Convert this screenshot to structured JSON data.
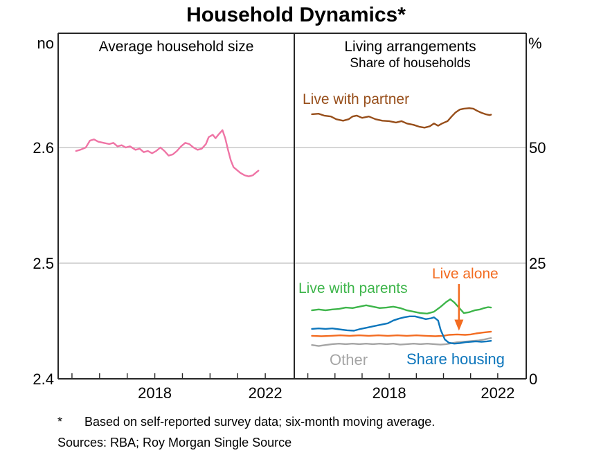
{
  "title": "Household Dynamics*",
  "panels": {
    "left": {
      "title": "Average household size",
      "unit": "no"
    },
    "right": {
      "title": "Living arrangements",
      "subtitle": "Share of households",
      "unit": "%"
    }
  },
  "footnote": {
    "marker": "*",
    "text": "Based on self-reported survey data; six-month moving average."
  },
  "sources": "Sources: RBA; Roy Morgan Single Source",
  "colors": {
    "pink": "#ef74a5",
    "brown": "#974e1a",
    "green": "#3db54a",
    "blue": "#0d76bc",
    "orange": "#f36c21",
    "gray": "#a5a5a5",
    "grid": "#bdbdbd",
    "axis": "#262626"
  },
  "chart_data": [
    {
      "type": "line",
      "panel": "left",
      "title": "Average household size",
      "ylabel_unit": "no",
      "ylim": [
        2.4,
        2.6988
      ],
      "yticks": [
        {
          "v": 2.6,
          "label": "2.6"
        },
        {
          "v": 2.5,
          "label": "2.5"
        },
        {
          "v": 2.4,
          "label": "2.4"
        }
      ],
      "axis_side": "left",
      "xlim": [
        2014.5,
        2023.05
      ],
      "xticks_labeled": [
        2018,
        2022
      ],
      "grid": "horizontal",
      "series": [
        {
          "name": "Average household size",
          "color_key": "pink",
          "points": [
            [
              2015.15,
              2.597
            ],
            [
              2015.3,
              2.598
            ],
            [
              2015.5,
              2.6
            ],
            [
              2015.65,
              2.606
            ],
            [
              2015.8,
              2.607
            ],
            [
              2015.95,
              2.605
            ],
            [
              2016.15,
              2.604
            ],
            [
              2016.35,
              2.603
            ],
            [
              2016.5,
              2.604
            ],
            [
              2016.65,
              2.601
            ],
            [
              2016.8,
              2.602
            ],
            [
              2016.95,
              2.6
            ],
            [
              2017.1,
              2.601
            ],
            [
              2017.3,
              2.598
            ],
            [
              2017.45,
              2.599
            ],
            [
              2017.6,
              2.596
            ],
            [
              2017.75,
              2.597
            ],
            [
              2017.9,
              2.595
            ],
            [
              2018.05,
              2.597
            ],
            [
              2018.2,
              2.6
            ],
            [
              2018.35,
              2.597
            ],
            [
              2018.5,
              2.593
            ],
            [
              2018.65,
              2.594
            ],
            [
              2018.8,
              2.597
            ],
            [
              2018.95,
              2.601
            ],
            [
              2019.1,
              2.604
            ],
            [
              2019.25,
              2.603
            ],
            [
              2019.4,
              2.6
            ],
            [
              2019.55,
              2.598
            ],
            [
              2019.7,
              2.599
            ],
            [
              2019.85,
              2.603
            ],
            [
              2019.95,
              2.609
            ],
            [
              2020.1,
              2.611
            ],
            [
              2020.2,
              2.608
            ],
            [
              2020.3,
              2.611
            ],
            [
              2020.45,
              2.615
            ],
            [
              2020.55,
              2.608
            ],
            [
              2020.65,
              2.598
            ],
            [
              2020.75,
              2.589
            ],
            [
              2020.85,
              2.583
            ],
            [
              2020.95,
              2.581
            ],
            [
              2021.1,
              2.578
            ],
            [
              2021.25,
              2.576
            ],
            [
              2021.4,
              2.575
            ],
            [
              2021.55,
              2.576
            ],
            [
              2021.65,
              2.578
            ],
            [
              2021.75,
              2.58
            ]
          ]
        }
      ]
    },
    {
      "type": "line",
      "panel": "right",
      "title": "Living arrangements",
      "subtitle": "Share of households",
      "ylabel_unit": "%",
      "ylim": [
        0,
        74.7
      ],
      "yticks": [
        {
          "v": 50,
          "label": "50"
        },
        {
          "v": 25,
          "label": "25"
        },
        {
          "v": 0,
          "label": "0"
        }
      ],
      "axis_side": "right",
      "xlim": [
        2014.5,
        2023.05
      ],
      "xticks_labeled": [
        2018,
        2022
      ],
      "grid": "horizontal",
      "draw_order": [
        4,
        2,
        3,
        1,
        0
      ],
      "arrow": {
        "x_year": 2020.57,
        "y_from": 20.5,
        "y_to": 10.4,
        "color_key": "orange"
      },
      "series": [
        {
          "name": "Live with partner",
          "color_key": "brown",
          "points": [
            [
              2015.15,
              57.2
            ],
            [
              2015.4,
              57.3
            ],
            [
              2015.6,
              56.9
            ],
            [
              2015.85,
              56.7
            ],
            [
              2016.05,
              56.1
            ],
            [
              2016.3,
              55.8
            ],
            [
              2016.5,
              56.1
            ],
            [
              2016.65,
              56.7
            ],
            [
              2016.8,
              56.9
            ],
            [
              2017.0,
              56.4
            ],
            [
              2017.25,
              56.7
            ],
            [
              2017.5,
              56.1
            ],
            [
              2017.75,
              55.8
            ],
            [
              2018.0,
              55.7
            ],
            [
              2018.25,
              55.4
            ],
            [
              2018.45,
              55.7
            ],
            [
              2018.65,
              55.2
            ],
            [
              2018.9,
              54.9
            ],
            [
              2019.1,
              54.5
            ],
            [
              2019.3,
              54.3
            ],
            [
              2019.5,
              54.6
            ],
            [
              2019.65,
              55.2
            ],
            [
              2019.8,
              54.7
            ],
            [
              2019.95,
              55.2
            ],
            [
              2020.15,
              55.7
            ],
            [
              2020.3,
              56.7
            ],
            [
              2020.45,
              57.6
            ],
            [
              2020.6,
              58.2
            ],
            [
              2020.75,
              58.4
            ],
            [
              2020.95,
              58.5
            ],
            [
              2021.1,
              58.4
            ],
            [
              2021.25,
              57.9
            ],
            [
              2021.4,
              57.5
            ],
            [
              2021.55,
              57.2
            ],
            [
              2021.7,
              57.0
            ],
            [
              2021.75,
              57.1
            ]
          ]
        },
        {
          "name": "Live with parents",
          "color_key": "green",
          "points": [
            [
              2015.15,
              14.8
            ],
            [
              2015.4,
              15.0
            ],
            [
              2015.65,
              14.8
            ],
            [
              2015.9,
              15.0
            ],
            [
              2016.15,
              15.1
            ],
            [
              2016.4,
              15.4
            ],
            [
              2016.65,
              15.3
            ],
            [
              2016.9,
              15.6
            ],
            [
              2017.15,
              15.9
            ],
            [
              2017.4,
              15.6
            ],
            [
              2017.65,
              15.3
            ],
            [
              2017.9,
              15.4
            ],
            [
              2018.15,
              15.6
            ],
            [
              2018.4,
              15.3
            ],
            [
              2018.65,
              14.8
            ],
            [
              2018.9,
              14.5
            ],
            [
              2019.15,
              14.2
            ],
            [
              2019.4,
              14.1
            ],
            [
              2019.65,
              14.5
            ],
            [
              2019.9,
              15.6
            ],
            [
              2020.1,
              16.6
            ],
            [
              2020.25,
              17.2
            ],
            [
              2020.4,
              16.5
            ],
            [
              2020.6,
              15.2
            ],
            [
              2020.75,
              14.2
            ],
            [
              2020.95,
              14.4
            ],
            [
              2021.15,
              14.8
            ],
            [
              2021.35,
              15.0
            ],
            [
              2021.5,
              15.3
            ],
            [
              2021.65,
              15.5
            ],
            [
              2021.75,
              15.4
            ]
          ]
        },
        {
          "name": "Live alone",
          "color_key": "orange",
          "points": [
            [
              2015.15,
              9.3
            ],
            [
              2015.5,
              9.2
            ],
            [
              2015.85,
              9.3
            ],
            [
              2016.2,
              9.4
            ],
            [
              2016.55,
              9.3
            ],
            [
              2016.9,
              9.4
            ],
            [
              2017.25,
              9.3
            ],
            [
              2017.6,
              9.4
            ],
            [
              2017.95,
              9.3
            ],
            [
              2018.3,
              9.4
            ],
            [
              2018.65,
              9.3
            ],
            [
              2019.0,
              9.4
            ],
            [
              2019.35,
              9.3
            ],
            [
              2019.7,
              9.2
            ],
            [
              2020.0,
              9.3
            ],
            [
              2020.2,
              9.5
            ],
            [
              2020.5,
              9.6
            ],
            [
              2020.8,
              9.5
            ],
            [
              2021.0,
              9.6
            ],
            [
              2021.2,
              9.8
            ],
            [
              2021.45,
              10.0
            ],
            [
              2021.75,
              10.2
            ]
          ]
        },
        {
          "name": "Share housing",
          "color_key": "blue",
          "points": [
            [
              2015.15,
              10.8
            ],
            [
              2015.4,
              10.9
            ],
            [
              2015.65,
              10.8
            ],
            [
              2015.9,
              10.9
            ],
            [
              2016.15,
              10.7
            ],
            [
              2016.45,
              10.5
            ],
            [
              2016.7,
              10.4
            ],
            [
              2016.95,
              10.8
            ],
            [
              2017.2,
              11.1
            ],
            [
              2017.45,
              11.4
            ],
            [
              2017.7,
              11.7
            ],
            [
              2017.95,
              12.0
            ],
            [
              2018.15,
              12.6
            ],
            [
              2018.35,
              13.0
            ],
            [
              2018.55,
              13.3
            ],
            [
              2018.75,
              13.5
            ],
            [
              2018.95,
              13.5
            ],
            [
              2019.15,
              13.2
            ],
            [
              2019.35,
              12.9
            ],
            [
              2019.55,
              13.1
            ],
            [
              2019.65,
              13.3
            ],
            [
              2019.8,
              12.6
            ],
            [
              2019.9,
              10.5
            ],
            [
              2020.05,
              8.5
            ],
            [
              2020.2,
              7.8
            ],
            [
              2020.4,
              7.6
            ],
            [
              2020.6,
              7.7
            ],
            [
              2020.8,
              7.9
            ],
            [
              2021.0,
              8.0
            ],
            [
              2021.2,
              8.1
            ],
            [
              2021.4,
              8.0
            ],
            [
              2021.6,
              8.1
            ],
            [
              2021.75,
              8.2
            ]
          ]
        },
        {
          "name": "Other",
          "color_key": "gray",
          "points": [
            [
              2015.15,
              7.3
            ],
            [
              2015.4,
              7.1
            ],
            [
              2015.65,
              7.3
            ],
            [
              2015.9,
              7.5
            ],
            [
              2016.15,
              7.6
            ],
            [
              2016.4,
              7.5
            ],
            [
              2016.65,
              7.6
            ],
            [
              2016.9,
              7.5
            ],
            [
              2017.15,
              7.6
            ],
            [
              2017.4,
              7.5
            ],
            [
              2017.65,
              7.6
            ],
            [
              2017.9,
              7.5
            ],
            [
              2018.15,
              7.6
            ],
            [
              2018.4,
              7.4
            ],
            [
              2018.65,
              7.5
            ],
            [
              2018.9,
              7.6
            ],
            [
              2019.15,
              7.5
            ],
            [
              2019.4,
              7.6
            ],
            [
              2019.65,
              7.5
            ],
            [
              2019.9,
              7.4
            ],
            [
              2020.1,
              7.5
            ],
            [
              2020.3,
              7.7
            ],
            [
              2020.5,
              7.9
            ],
            [
              2020.7,
              8.0
            ],
            [
              2020.9,
              8.1
            ],
            [
              2021.1,
              8.2
            ],
            [
              2021.3,
              8.3
            ],
            [
              2021.5,
              8.5
            ],
            [
              2021.65,
              8.7
            ],
            [
              2021.75,
              8.8
            ]
          ]
        }
      ]
    }
  ]
}
